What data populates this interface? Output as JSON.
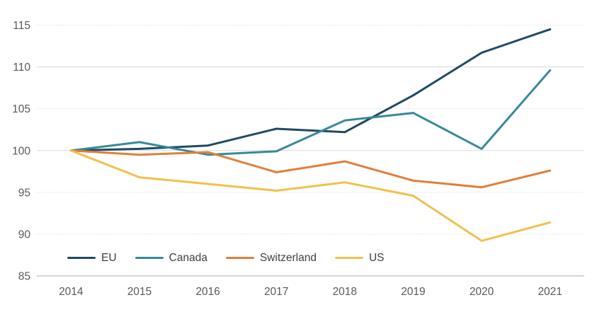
{
  "chart_data": {
    "type": "line",
    "title": "",
    "xlabel": "",
    "ylabel": "",
    "categories": [
      "2014",
      "2015",
      "2016",
      "2017",
      "2018",
      "2019",
      "2020",
      "2021"
    ],
    "series": [
      {
        "name": "EU",
        "color": "#1f4a63",
        "values": [
          100,
          100.2,
          100.6,
          102.6,
          102.2,
          106.6,
          111.7,
          114.5
        ]
      },
      {
        "name": "Canada",
        "color": "#38899a",
        "values": [
          100,
          101.0,
          99.5,
          99.9,
          103.6,
          104.5,
          100.2,
          109.6
        ]
      },
      {
        "name": "Switzerland",
        "color": "#e07f3a",
        "values": [
          100,
          99.5,
          99.8,
          97.4,
          98.7,
          96.4,
          95.6,
          97.6
        ]
      },
      {
        "name": "US",
        "color": "#f2c14c",
        "values": [
          100,
          96.8,
          96.0,
          95.2,
          96.2,
          94.6,
          89.2,
          91.4
        ]
      }
    ],
    "ylim": [
      85,
      115
    ],
    "yticks": [
      85,
      90,
      95,
      100,
      105,
      110,
      115
    ],
    "solid_ytick_lines": [
      100,
      110
    ],
    "baseline_value": 85,
    "grid": true,
    "legend_position": "bottom-left-inside",
    "legend_labels": [
      "EU",
      "Canada",
      "Switzerland",
      "US"
    ]
  },
  "colors": {
    "tick_label": "#595959",
    "legend_label": "#404040",
    "gridline": "#d9d9d9",
    "axis_line": "#bfbfbf",
    "background": "#ffffff"
  }
}
